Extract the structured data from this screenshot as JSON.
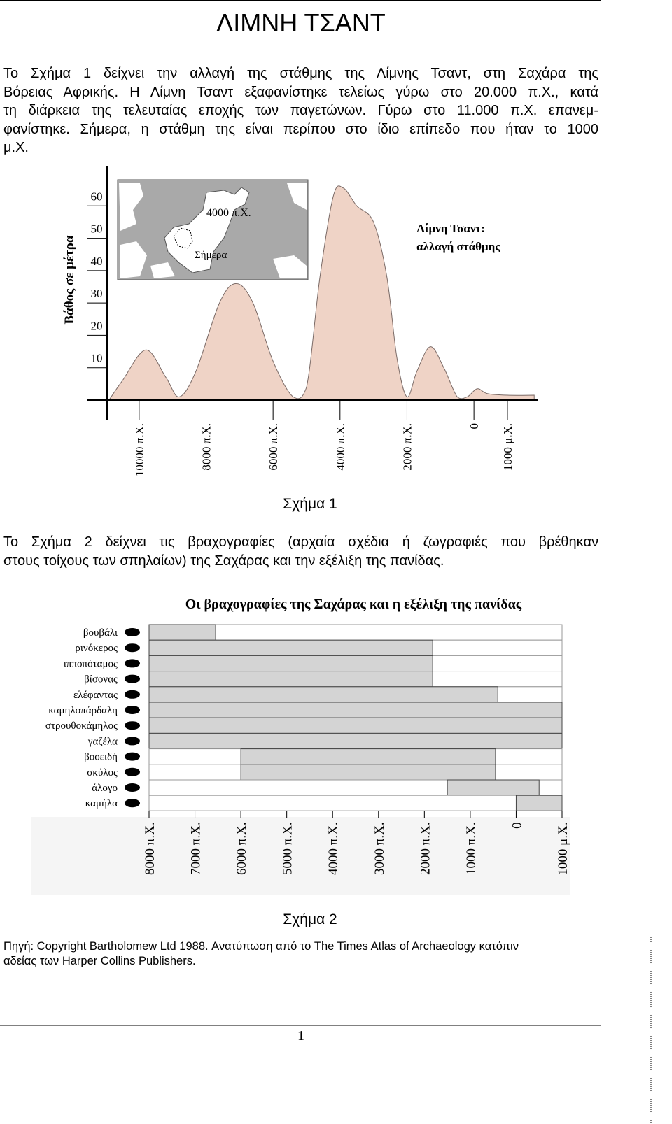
{
  "document": {
    "title": "ΛΙΜΝΗ ΤΣΑΝΤ",
    "paragraphs": [
      [
        "Το Σχήμα 1 δείχνει την αλλαγή της στάθμης της Λίμνης Τσαντ, στη Σαχάρα της",
        "Βόρειας Αφρικής. Η Λίμνη Τσαντ εξαφανίστηκε τελείως γύρω στο 20.000 π.Χ., κατά",
        "τη διάρκεια της τελευταίας εποχής των παγετώνων. Γύρω στο 11.000 π.Χ. επανεμ-",
        "φανίστηκε. Σήμερα, η στάθμη της είναι περίπου στο ίδιο επίπεδο που ήταν το 1000",
        "μ.Χ."
      ],
      [
        "Το Σχήμα 2 δείχνει τις βραχογραφίες (αρχαία σχέδια ή ζωγραφιές που βρέθηκαν",
        "στους τοίχους των σπηλαίων) της Σαχάρας και την εξέλιξη της πανίδας."
      ]
    ],
    "captions": [
      "Σχήμα 1",
      "Σχήμα 2"
    ],
    "source": [
      "Πηγή: Copyright Bartholomew Ltd 1988. Ανατύπωση από το The Times Atlas of Archaeology κατόπιν",
      "αδείας των Harper Collins Publishers."
    ],
    "page_number": "1"
  },
  "chart_data": [
    {
      "type": "area",
      "y_label": "Βάθος σε μέτρα",
      "annotation": [
        "Λίμνη Τσαντ:",
        "αλλαγή στάθμης"
      ],
      "inset_labels": [
        "4000 π.Χ.",
        "Σήμερα"
      ],
      "x": [
        -10900,
        -10500,
        -9800,
        -9200,
        -8800,
        -8300,
        -7600,
        -7100,
        -6600,
        -6000,
        -5400,
        -5000,
        -4600,
        -4200,
        -3900,
        -3500,
        -3000,
        -2600,
        -2300,
        -2000,
        -1700,
        -1300,
        -900,
        -500,
        -200,
        100,
        400,
        1000,
        1800
      ],
      "values": [
        0,
        6,
        15.5,
        7,
        1,
        9,
        30,
        36,
        30,
        12,
        1,
        4,
        38,
        63,
        65.5,
        60,
        55,
        38,
        13,
        1,
        9,
        16.5,
        10,
        1,
        1,
        3.5,
        2,
        1.5,
        1.5
      ],
      "color": "#efd3c6",
      "xlim": [
        -11000,
        1900
      ],
      "ylim": [
        0,
        70
      ],
      "yticks": [
        10,
        20,
        30,
        40,
        50,
        60
      ],
      "xticks": [
        {
          "value": -10000,
          "label": "10000 π.Χ."
        },
        {
          "value": -8000,
          "label": "8000 π.Χ."
        },
        {
          "value": -6000,
          "label": "6000 π.Χ."
        },
        {
          "value": -4000,
          "label": "4000 π.Χ."
        },
        {
          "value": -2000,
          "label": "2000 π.Χ."
        },
        0,
        {
          "value": 1000,
          "label": "1000 μ.Χ."
        }
      ]
    },
    {
      "type": "range",
      "title": "Οι βραχογραφίες της Σαχάρας και η εξέλιξη της πανίδας",
      "categories": [
        "βουβάλι",
        "ρινόκερος",
        "ιπποπόταμος",
        "βίσονας",
        "ελέφαντας",
        "καμηλοπάρδαλη",
        "στρουθοκάμηλος",
        "γαζέλα",
        "βοοειδή",
        "σκύλος",
        "άλογο",
        "καμήλα"
      ],
      "start": [
        -8000,
        -8000,
        -8000,
        -8000,
        -8000,
        -8000,
        -8000,
        -8000,
        -6000,
        -6000,
        -1500,
        0
      ],
      "end": [
        -6550,
        -1820,
        -1820,
        -1820,
        -400,
        1000,
        1000,
        1000,
        -450,
        -450,
        500,
        1000
      ],
      "color": "#d4d4d4",
      "xlim": [
        -8000,
        1000
      ],
      "xticks": [
        {
          "value": -8000,
          "label": "8000 π.Χ."
        },
        {
          "value": -7000,
          "label": "7000 π.Χ."
        },
        {
          "value": -6000,
          "label": "6000 π.Χ."
        },
        {
          "value": -5000,
          "label": "5000 π.Χ."
        },
        {
          "value": -4000,
          "label": "4000 π.Χ."
        },
        {
          "value": -3000,
          "label": "3000 π.Χ."
        },
        {
          "value": -2000,
          "label": "2000 π.Χ."
        },
        {
          "value": -1000,
          "label": "1000 π.Χ."
        },
        0,
        {
          "value": 1000,
          "label": "1000 μ.Χ."
        }
      ]
    }
  ]
}
